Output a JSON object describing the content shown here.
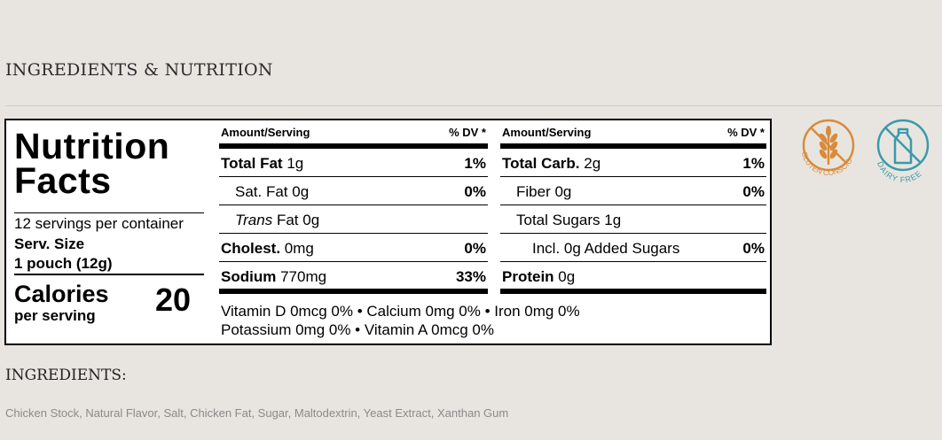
{
  "section_title": "INGREDIENTS & NUTRITION",
  "label": {
    "title_line1": "Nutrition",
    "title_line2": "Facts",
    "servings": "12 servings per container",
    "serv_size_label": "Serv. Size",
    "serv_size_value": "1 pouch (12g)",
    "calories_label": "Calories",
    "per_serving": "per serving",
    "calories_value": "20",
    "header_amount": "Amount/Serving",
    "header_dv": "% DV *",
    "left_rows": [
      {
        "name": "Total Fat",
        "amount": "1g",
        "dv": "1%"
      },
      {
        "name": "Sat. Fat",
        "amount": "0g",
        "dv": "0%"
      },
      {
        "name_italic": "Trans",
        "name": "Fat",
        "amount": "0g",
        "dv": ""
      },
      {
        "name": "Cholest.",
        "amount": "0mg",
        "dv": "0%"
      },
      {
        "name": "Sodium",
        "amount": "770mg",
        "dv": "33%"
      }
    ],
    "right_rows": [
      {
        "name": "Total Carb.",
        "amount": "2g",
        "dv": "1%"
      },
      {
        "name": "Fiber",
        "amount": "0g",
        "dv": "0%"
      },
      {
        "name": "Total Sugars",
        "amount": "1g",
        "dv": ""
      },
      {
        "name": "Incl. 0g Added Sugars",
        "amount": "",
        "dv": "0%"
      },
      {
        "name": "Protein",
        "amount": "0g",
        "dv": ""
      }
    ],
    "vitamins_line1": "Vitamin D 0mcg 0%  •  Calcium 0mg 0%  •  Iron 0mg 0%",
    "vitamins_line2": "Potassium 0mg 0%  •  Vitamin A 0mcg 0%"
  },
  "badges": {
    "gluten": {
      "text": "GLUTEN CONSCIOUS",
      "color": "#d98a3a"
    },
    "dairy": {
      "text": "DAIRY FREE",
      "color": "#3a9aa8"
    }
  },
  "ingredients_title": "INGREDIENTS:",
  "ingredients_text": "Chicken Stock, Natural Flavor, Salt, Chicken Fat, Sugar, Maltodextrin, Yeast Extract, Xanthan Gum"
}
